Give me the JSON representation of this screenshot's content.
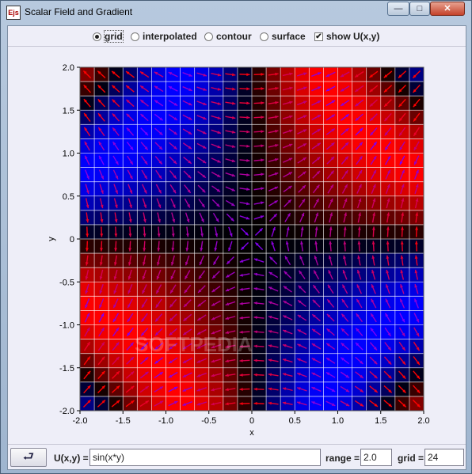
{
  "window": {
    "title": "Scalar Field and Gradient",
    "icon_label": "Ejs"
  },
  "options": [
    {
      "label": "grid",
      "type": "radio",
      "checked": true
    },
    {
      "label": "interpolated",
      "type": "radio",
      "checked": false
    },
    {
      "label": "contour",
      "type": "radio",
      "checked": false
    },
    {
      "label": "surface",
      "type": "radio",
      "checked": false
    },
    {
      "label": "show U(x,y)",
      "type": "checkbox",
      "checked": true
    }
  ],
  "plot": {
    "xlabel": "x",
    "ylabel": "y",
    "xlim": [
      -2.0,
      2.0
    ],
    "ylim": [
      -2.0,
      2.0
    ],
    "xticks": [
      "-2.0",
      "-1.5",
      "-1.0",
      "-0.5",
      "0",
      "0.5",
      "1.0",
      "1.5",
      "2.0"
    ],
    "yticks": [
      "2.0",
      "1.5",
      "1.0",
      "0.5",
      "0",
      "-0.5",
      "-1.0",
      "-1.5",
      "-2.0"
    ],
    "grid_size": 24,
    "range": 2.0,
    "colors": {
      "positive": "#ff0000",
      "negative": "#0000ff",
      "zero": "#000000",
      "grid": "#ffffff"
    },
    "watermark": "SOFTPEDIA"
  },
  "controls": {
    "reset_icon": "reset-arrow-icon",
    "function_label": "U(x,y) =",
    "function_value": "sin(x*y)",
    "range_label": "range =",
    "range_value": "2.0",
    "grid_label": "grid =",
    "grid_value": "24"
  }
}
